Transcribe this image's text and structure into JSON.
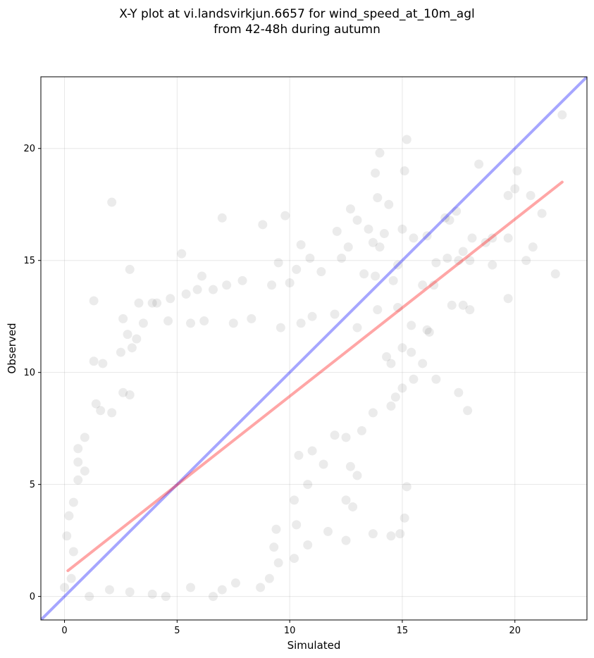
{
  "chart_data": {
    "type": "scatter",
    "title_line1": "X-Y plot at vi.landsvirkjun.6657 for wind_speed_at_10m_agl",
    "title_line2": "from 42-48h during autumn",
    "xlabel": "Simulated",
    "ylabel": "Observed",
    "xlim": [
      -1.05,
      23.2
    ],
    "ylim": [
      -1.05,
      23.2
    ],
    "xticks": [
      0,
      5,
      10,
      15,
      20
    ],
    "yticks": [
      0,
      5,
      10,
      15,
      20
    ],
    "grid": true,
    "point_color": "#000000",
    "point_alpha": 0.08,
    "identity_line": {
      "color": "#0000ff",
      "alpha": 0.35,
      "x": [
        -1.05,
        23.2
      ],
      "y": [
        -1.05,
        23.2
      ]
    },
    "fit_line": {
      "color": "#ff0000",
      "alpha": 0.35,
      "x": [
        0.15,
        22.1
      ],
      "y": [
        1.15,
        18.5
      ]
    },
    "points": [
      [
        22.1,
        21.5
      ],
      [
        15.2,
        20.4
      ],
      [
        14.0,
        19.8
      ],
      [
        13.8,
        18.9
      ],
      [
        15.1,
        19.0
      ],
      [
        18.4,
        19.3
      ],
      [
        20.1,
        19.0
      ],
      [
        2.1,
        17.6
      ],
      [
        13.9,
        17.8
      ],
      [
        12.7,
        17.3
      ],
      [
        14.4,
        17.5
      ],
      [
        19.7,
        17.9
      ],
      [
        20.0,
        18.2
      ],
      [
        20.7,
        17.9
      ],
      [
        17.4,
        17.2
      ],
      [
        17.1,
        16.8
      ],
      [
        16.9,
        16.9
      ],
      [
        21.2,
        17.1
      ],
      [
        7.0,
        16.9
      ],
      [
        8.8,
        16.6
      ],
      [
        9.8,
        17.0
      ],
      [
        13.0,
        16.8
      ],
      [
        12.1,
        16.3
      ],
      [
        13.5,
        16.4
      ],
      [
        14.2,
        16.2
      ],
      [
        15.0,
        16.4
      ],
      [
        15.5,
        16.0
      ],
      [
        16.1,
        16.1
      ],
      [
        18.1,
        16.0
      ],
      [
        19.0,
        16.0
      ],
      [
        19.7,
        16.0
      ],
      [
        20.8,
        15.6
      ],
      [
        18.7,
        15.8
      ],
      [
        17.7,
        15.4
      ],
      [
        17.0,
        15.1
      ],
      [
        13.7,
        15.8
      ],
      [
        14.0,
        15.6
      ],
      [
        12.6,
        15.6
      ],
      [
        12.3,
        15.1
      ],
      [
        10.5,
        15.7
      ],
      [
        10.9,
        15.1
      ],
      [
        9.5,
        14.9
      ],
      [
        5.2,
        15.3
      ],
      [
        2.9,
        14.6
      ],
      [
        6.1,
        14.3
      ],
      [
        16.5,
        14.9
      ],
      [
        17.5,
        15.0
      ],
      [
        18.0,
        15.0
      ],
      [
        20.5,
        15.0
      ],
      [
        21.8,
        14.4
      ],
      [
        19.0,
        14.8
      ],
      [
        16.4,
        13.9
      ],
      [
        15.9,
        13.9
      ],
      [
        14.8,
        14.8
      ],
      [
        14.6,
        14.1
      ],
      [
        13.8,
        14.3
      ],
      [
        13.3,
        14.4
      ],
      [
        11.4,
        14.5
      ],
      [
        10.3,
        14.6
      ],
      [
        10.0,
        14.0
      ],
      [
        9.2,
        13.9
      ],
      [
        7.9,
        14.1
      ],
      [
        7.2,
        13.9
      ],
      [
        6.6,
        13.7
      ],
      [
        5.4,
        13.5
      ],
      [
        5.9,
        13.7
      ],
      [
        4.7,
        13.3
      ],
      [
        4.1,
        13.1
      ],
      [
        3.9,
        13.1
      ],
      [
        3.3,
        13.1
      ],
      [
        1.3,
        13.2
      ],
      [
        3.5,
        12.2
      ],
      [
        2.6,
        12.4
      ],
      [
        4.6,
        12.3
      ],
      [
        5.6,
        12.2
      ],
      [
        6.2,
        12.3
      ],
      [
        7.5,
        12.2
      ],
      [
        8.3,
        12.4
      ],
      [
        9.6,
        12.0
      ],
      [
        10.5,
        12.2
      ],
      [
        11.0,
        12.5
      ],
      [
        12.0,
        12.6
      ],
      [
        13.0,
        12.0
      ],
      [
        13.9,
        12.8
      ],
      [
        14.8,
        12.9
      ],
      [
        15.4,
        12.1
      ],
      [
        16.1,
        11.9
      ],
      [
        16.2,
        11.8
      ],
      [
        17.2,
        13.0
      ],
      [
        17.7,
        13.0
      ],
      [
        18.0,
        12.8
      ],
      [
        19.7,
        13.3
      ],
      [
        15.0,
        11.1
      ],
      [
        15.4,
        10.9
      ],
      [
        15.9,
        10.4
      ],
      [
        14.5,
        10.4
      ],
      [
        14.3,
        10.7
      ],
      [
        15.5,
        9.7
      ],
      [
        15.0,
        9.3
      ],
      [
        14.7,
        8.9
      ],
      [
        14.5,
        8.5
      ],
      [
        13.7,
        8.2
      ],
      [
        13.2,
        7.4
      ],
      [
        12.5,
        7.1
      ],
      [
        12.0,
        7.2
      ],
      [
        12.7,
        5.8
      ],
      [
        13.0,
        5.4
      ],
      [
        11.5,
        5.9
      ],
      [
        11.0,
        6.5
      ],
      [
        10.4,
        6.3
      ],
      [
        10.8,
        5.0
      ],
      [
        10.2,
        4.3
      ],
      [
        10.3,
        3.2
      ],
      [
        9.4,
        3.0
      ],
      [
        9.3,
        2.2
      ],
      [
        9.5,
        1.5
      ],
      [
        9.1,
        0.8
      ],
      [
        8.7,
        0.4
      ],
      [
        10.2,
        1.7
      ],
      [
        10.8,
        2.3
      ],
      [
        11.7,
        2.9
      ],
      [
        12.5,
        2.5
      ],
      [
        12.5,
        4.3
      ],
      [
        12.8,
        4.0
      ],
      [
        13.7,
        2.8
      ],
      [
        14.5,
        2.7
      ],
      [
        14.9,
        2.8
      ],
      [
        15.1,
        3.5
      ],
      [
        15.2,
        4.9
      ],
      [
        17.5,
        9.1
      ],
      [
        17.9,
        8.3
      ],
      [
        16.5,
        9.7
      ],
      [
        1.1,
        0.0
      ],
      [
        2.0,
        0.3
      ],
      [
        2.9,
        0.2
      ],
      [
        3.9,
        0.1
      ],
      [
        4.5,
        0.0
      ],
      [
        5.6,
        0.4
      ],
      [
        6.6,
        0.0
      ],
      [
        7.0,
        0.3
      ],
      [
        7.6,
        0.6
      ],
      [
        1.3,
        10.5
      ],
      [
        1.7,
        10.4
      ],
      [
        2.5,
        10.9
      ],
      [
        3.0,
        11.1
      ],
      [
        3.2,
        11.5
      ],
      [
        2.8,
        11.7
      ],
      [
        2.6,
        9.1
      ],
      [
        2.9,
        9.0
      ],
      [
        1.4,
        8.6
      ],
      [
        1.6,
        8.3
      ],
      [
        2.1,
        8.2
      ],
      [
        0.9,
        7.1
      ],
      [
        0.6,
        6.6
      ],
      [
        0.6,
        6.0
      ],
      [
        0.9,
        5.6
      ],
      [
        0.6,
        5.2
      ],
      [
        0.4,
        4.2
      ],
      [
        0.2,
        3.6
      ],
      [
        0.1,
        2.7
      ],
      [
        0.4,
        2.0
      ],
      [
        0.0,
        0.4
      ],
      [
        0.3,
        0.8
      ]
    ]
  }
}
